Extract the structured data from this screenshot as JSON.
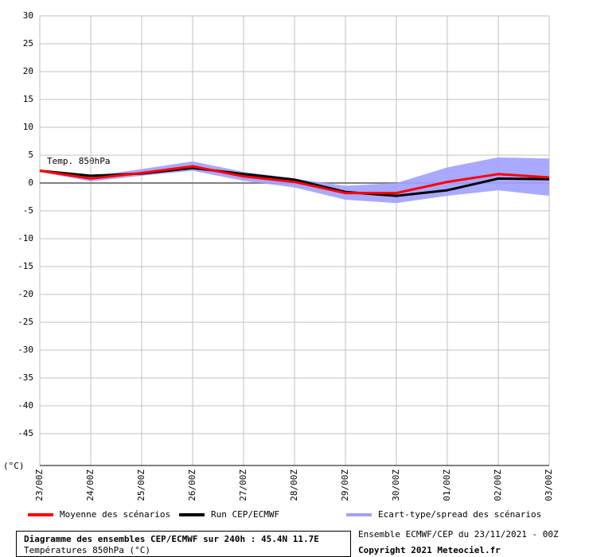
{
  "chart_data": {
    "type": "line",
    "title": "Diagramme des ensembles CEP/ECMWF sur 240h : 45.4N 11.7E",
    "subtitle": "Températures 850hPa (°C)",
    "y_label": "(°C)",
    "annotation": "Temp. 850hPa",
    "source": "Ensemble ECMWF/CEP du 23/11/2021 - 00Z",
    "copyright": "Copyright 2021 Meteociel.fr",
    "categories": [
      "23/00Z",
      "24/00Z",
      "25/00Z",
      "26/00Z",
      "27/00Z",
      "28/00Z",
      "29/00Z",
      "30/00Z",
      "01/00Z",
      "02/00Z",
      "03/00Z"
    ],
    "band": {
      "name": "Ecart-type/spread des scénarios",
      "color": "#a0a0ff",
      "upper": [
        2.4,
        1.2,
        2.5,
        3.9,
        2.0,
        0.8,
        -0.5,
        0.0,
        2.8,
        4.6,
        4.4
      ],
      "lower": [
        2.0,
        0.3,
        1.3,
        2.2,
        0.4,
        -0.8,
        -3.0,
        -3.6,
        -2.3,
        -1.3,
        -2.3
      ]
    },
    "series": [
      {
        "name": "Moyenne des scénarios",
        "color": "#ff0000",
        "values": [
          2.2,
          0.8,
          1.8,
          3.0,
          1.2,
          0.2,
          -1.8,
          -1.8,
          0.2,
          1.6,
          1.0
        ]
      },
      {
        "name": "Run CEP/ECMWF",
        "color": "#000000",
        "values": [
          2.2,
          1.3,
          1.7,
          2.7,
          1.6,
          0.6,
          -1.6,
          -2.3,
          -1.3,
          0.8,
          0.7
        ]
      }
    ],
    "ylim": [
      -50,
      30
    ],
    "yticks": [
      30,
      25,
      20,
      15,
      10,
      5,
      0,
      -5,
      -10,
      -15,
      -20,
      -25,
      -30,
      -35,
      -40,
      -45
    ],
    "grid": true
  }
}
